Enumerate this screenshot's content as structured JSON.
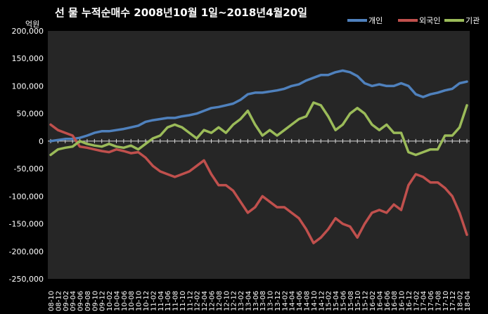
{
  "chart_data": {
    "type": "line",
    "title": "선 물  누적순매수  2008년10월 1일~2018년4월20일",
    "ylabel": "억원",
    "ylim": [
      -250000,
      200000
    ],
    "yticks": [
      200000,
      150000,
      100000,
      50000,
      0,
      -50000,
      -100000,
      -150000,
      -200000,
      -250000
    ],
    "ytick_labels": [
      "200,000",
      "150,000",
      "100,000",
      "50,000",
      "0",
      "-50,000",
      "-100,000",
      "-150,000",
      "-200,000",
      "-250,000"
    ],
    "legend_position": "top-right",
    "grid": false,
    "categories": [
      "08-10",
      "08-12",
      "09-02",
      "09-04",
      "09-06",
      "09-08",
      "09-10",
      "09-12",
      "10-02",
      "10-04",
      "10-06",
      "10-08",
      "10-10",
      "10-12",
      "11-02",
      "11-04",
      "11-06",
      "11-08",
      "11-10",
      "11-12",
      "12-02",
      "12-04",
      "12-06",
      "12-08",
      "12-10",
      "12-12",
      "13-02",
      "13-04",
      "13-06",
      "13-08",
      "13-10",
      "13-12",
      "14-02",
      "14-04",
      "14-06",
      "14-08",
      "14-10",
      "14-12",
      "15-02",
      "15-04",
      "15-06",
      "15-08",
      "15-10",
      "15-12",
      "16-02",
      "16-04",
      "16-06",
      "16-08",
      "16-10",
      "16-12",
      "17-02",
      "17-04",
      "17-06",
      "17-08",
      "17-10",
      "17-12",
      "18-02",
      "18-04"
    ],
    "series": [
      {
        "name": "개인",
        "color": "#4f81bd",
        "values": [
          0,
          2000,
          4000,
          4000,
          6000,
          10000,
          15000,
          18000,
          18000,
          20000,
          22000,
          25000,
          28000,
          35000,
          38000,
          40000,
          42000,
          42000,
          45000,
          47000,
          50000,
          55000,
          60000,
          62000,
          65000,
          68000,
          75000,
          85000,
          88000,
          88000,
          90000,
          92000,
          95000,
          100000,
          103000,
          110000,
          115000,
          120000,
          120000,
          125000,
          128000,
          125000,
          118000,
          105000,
          100000,
          103000,
          100000,
          100000,
          105000,
          100000,
          85000,
          80000,
          85000,
          88000,
          92000,
          95000,
          105000,
          108000
        ]
      },
      {
        "name": "외국인",
        "color": "#c0504d",
        "values": [
          30000,
          20000,
          15000,
          10000,
          -10000,
          -12000,
          -15000,
          -18000,
          -20000,
          -15000,
          -18000,
          -22000,
          -20000,
          -30000,
          -45000,
          -55000,
          -60000,
          -65000,
          -60000,
          -55000,
          -45000,
          -35000,
          -60000,
          -80000,
          -80000,
          -90000,
          -110000,
          -130000,
          -120000,
          -100000,
          -110000,
          -120000,
          -120000,
          -130000,
          -140000,
          -160000,
          -185000,
          -175000,
          -160000,
          -140000,
          -150000,
          -155000,
          -175000,
          -150000,
          -130000,
          -125000,
          -130000,
          -115000,
          -125000,
          -80000,
          -60000,
          -65000,
          -75000,
          -75000,
          -85000,
          -100000,
          -130000,
          -170000
        ]
      },
      {
        "name": "기관",
        "color": "#9bbb59",
        "values": [
          -25000,
          -15000,
          -12000,
          -10000,
          0,
          -5000,
          -8000,
          -10000,
          -5000,
          -10000,
          -12000,
          -8000,
          -15000,
          -5000,
          5000,
          10000,
          25000,
          30000,
          25000,
          15000,
          5000,
          20000,
          15000,
          25000,
          15000,
          30000,
          40000,
          55000,
          30000,
          10000,
          20000,
          10000,
          20000,
          30000,
          40000,
          45000,
          70000,
          65000,
          45000,
          20000,
          30000,
          50000,
          60000,
          50000,
          30000,
          20000,
          30000,
          15000,
          15000,
          -20000,
          -25000,
          -20000,
          -15000,
          -15000,
          10000,
          10000,
          25000,
          65000
        ]
      }
    ]
  }
}
